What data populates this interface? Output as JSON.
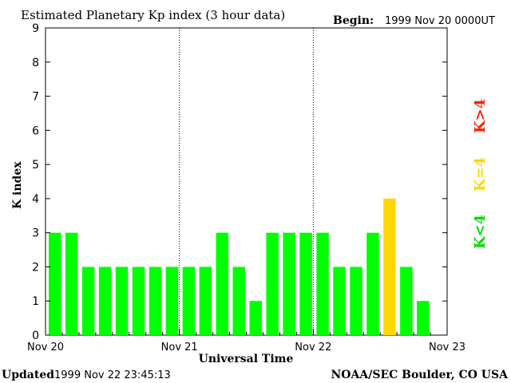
{
  "header": {
    "title": "Estimated Planetary Kp index (3 hour data)",
    "begin_label": "Begin:",
    "begin_value": "1999 Nov 20 0000UT"
  },
  "footer": {
    "updated_label": "Updated",
    "updated_value": "1999 Nov 22 23:45:13",
    "credit": "NOAA/SEC Boulder, CO USA"
  },
  "legend": {
    "green": "K<4",
    "yellow": "K=4",
    "red": "K>4",
    "colors": {
      "green": "#00ff00",
      "yellow": "#ffd700",
      "red": "#ff2000"
    }
  },
  "chart_data": {
    "type": "bar",
    "title": "Estimated Planetary Kp index (3 hour data)",
    "xlabel": "Universal Time",
    "ylabel": "K index",
    "ylim": [
      0,
      9
    ],
    "yticks": [
      0,
      1,
      2,
      3,
      4,
      5,
      6,
      7,
      8,
      9
    ],
    "xticks": [
      "Nov 20",
      "Nov 21",
      "Nov 22",
      "Nov 23"
    ],
    "interval_hours": 3,
    "values": [
      3,
      3,
      2,
      2,
      2,
      2,
      2,
      2,
      2,
      2,
      3,
      2,
      1,
      3,
      3,
      3,
      3,
      2,
      2,
      3,
      4,
      2,
      1
    ],
    "grid": "dotted vertical lines at day boundaries",
    "legend_placement": "right"
  }
}
